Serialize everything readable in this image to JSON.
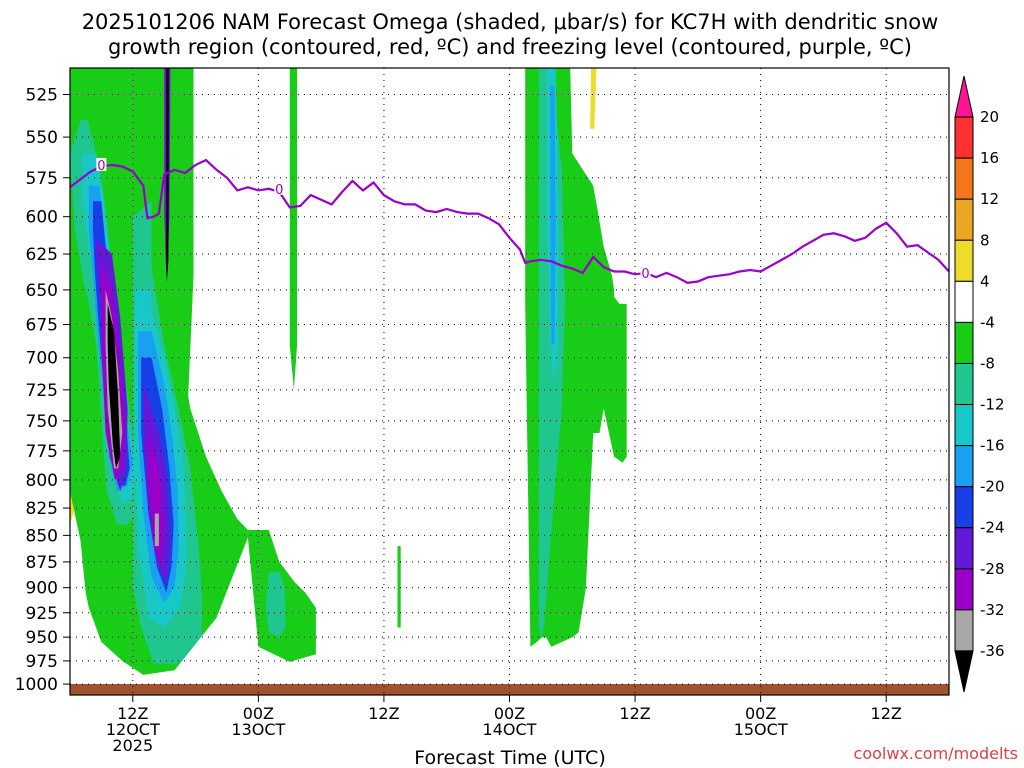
{
  "title_lines": [
    "2025101206 NAM Forecast Omega (shaded, μbar/s) for KC7H with dendritic snow",
    "growth region (contoured, red, ºC) and freezing level (contoured, purple, ºC)"
  ],
  "credit": "coolwx.com/modelts",
  "colors": {
    "freezing_line": "#9900cc",
    "ground": "#a0522d",
    "grid": "#000000"
  },
  "chart_data": {
    "type": "heatmap",
    "title": "2025101206 NAM Forecast Omega (shaded, μbar/s) for KC7H with dendritic snow growth region (contoured, red, ºC) and freezing level (contoured, purple, ºC)",
    "xlabel": "Forecast Time (UTC)",
    "ylabel": "",
    "x_range_hours": [
      0,
      84
    ],
    "y_range_hPa": [
      510,
      1012
    ],
    "y_scale": "log",
    "grid": "dotted",
    "pressure_ticks": [
      "525",
      "550",
      "575",
      "600",
      "625",
      "650",
      "675",
      "700",
      "725",
      "750",
      "775",
      "800",
      "825",
      "850",
      "875",
      "900",
      "925",
      "950",
      "975",
      "1000"
    ],
    "time_ticks": [
      {
        "hour": 6,
        "lines": [
          "12Z",
          "12OCT",
          "2025"
        ]
      },
      {
        "hour": 18,
        "lines": [
          "00Z",
          "13OCT"
        ]
      },
      {
        "hour": 30,
        "lines": [
          "12Z"
        ]
      },
      {
        "hour": 42,
        "lines": [
          "00Z",
          "14OCT"
        ]
      },
      {
        "hour": 54,
        "lines": [
          "12Z"
        ]
      },
      {
        "hour": 66,
        "lines": [
          "00Z",
          "15OCT"
        ]
      },
      {
        "hour": 78,
        "lines": [
          "12Z"
        ]
      }
    ],
    "colorbar": {
      "labels": [
        "20",
        "16",
        "12",
        "8",
        "4",
        "-4",
        "-8",
        "-12",
        "-16",
        "-20",
        "-24",
        "-28",
        "-32",
        "-36"
      ],
      "colors": [
        "#ff1493",
        "#ff3030",
        "#f4761b",
        "#e8a623",
        "#eedc2a",
        "#ffffff",
        "#18cc18",
        "#20c68f",
        "#18c8c8",
        "#1aa0f2",
        "#1840e6",
        "#6418d8",
        "#9a00c8",
        "#a8a8a8",
        "#000000"
      ]
    },
    "freezing_level": {
      "label": "0",
      "points": [
        [
          0,
          581
        ],
        [
          1,
          576
        ],
        [
          2,
          571
        ],
        [
          3,
          568
        ],
        [
          4,
          567
        ],
        [
          5,
          568
        ],
        [
          6,
          571
        ],
        [
          7,
          580
        ],
        [
          7.4,
          601
        ],
        [
          8,
          600
        ],
        [
          8.5,
          598
        ],
        [
          9,
          573
        ],
        [
          10,
          570
        ],
        [
          11,
          572
        ],
        [
          12,
          567
        ],
        [
          13,
          564
        ],
        [
          14,
          570
        ],
        [
          15,
          575
        ],
        [
          16,
          583
        ],
        [
          17,
          581
        ],
        [
          18,
          583
        ],
        [
          19,
          582
        ],
        [
          20,
          584
        ],
        [
          21,
          594
        ],
        [
          22,
          593
        ],
        [
          23,
          586
        ],
        [
          24,
          589
        ],
        [
          25,
          592
        ],
        [
          26,
          584
        ],
        [
          27,
          577
        ],
        [
          28,
          583
        ],
        [
          29,
          578
        ],
        [
          30,
          586
        ],
        [
          31,
          590
        ],
        [
          32,
          592
        ],
        [
          33,
          592
        ],
        [
          34,
          596
        ],
        [
          35,
          597
        ],
        [
          36,
          595
        ],
        [
          37,
          597
        ],
        [
          38,
          598
        ],
        [
          39,
          598
        ],
        [
          40,
          601
        ],
        [
          41,
          605
        ],
        [
          42,
          614
        ],
        [
          43,
          622
        ],
        [
          43.5,
          631
        ],
        [
          44,
          630
        ],
        [
          45,
          629
        ],
        [
          46,
          630
        ],
        [
          47,
          633
        ],
        [
          48,
          635
        ],
        [
          49,
          638
        ],
        [
          50,
          627
        ],
        [
          51,
          634
        ],
        [
          52,
          637
        ],
        [
          53,
          637
        ],
        [
          54,
          639
        ],
        [
          55,
          638
        ],
        [
          56,
          641
        ],
        [
          57,
          638
        ],
        [
          58,
          641
        ],
        [
          59,
          645
        ],
        [
          60,
          644
        ],
        [
          61,
          641
        ],
        [
          62,
          640
        ],
        [
          63,
          639
        ],
        [
          64,
          637
        ],
        [
          65,
          636
        ],
        [
          66,
          637
        ],
        [
          67,
          633
        ],
        [
          68,
          629
        ],
        [
          69,
          625
        ],
        [
          70,
          620
        ],
        [
          71,
          616
        ],
        [
          72,
          612
        ],
        [
          73,
          611
        ],
        [
          74,
          613
        ],
        [
          75,
          616
        ],
        [
          76,
          614
        ],
        [
          77,
          608
        ],
        [
          78,
          604
        ],
        [
          79,
          611
        ],
        [
          80,
          620
        ],
        [
          81,
          619
        ],
        [
          82,
          624
        ],
        [
          83,
          629
        ],
        [
          84,
          637
        ]
      ]
    },
    "omega_regions": [
      {
        "value": 6,
        "x": [
          0,
          0.6,
          0.6,
          0,
          0
        ],
        "p": [
          640,
          660,
          820,
          840,
          640
        ]
      },
      {
        "value": 6,
        "x": [
          2.5,
          3.4,
          3.4,
          2.5,
          2.5
        ],
        "p": [
          730,
          740,
          880,
          900,
          730
        ]
      },
      {
        "value": 6,
        "x": [
          8.4,
          9.0,
          9.2,
          8.6,
          8.4
        ],
        "p": [
          510,
          510,
          740,
          740,
          510
        ]
      },
      {
        "value": 6,
        "x": [
          49.8,
          50.3,
          50.1,
          49.7,
          49.8
        ],
        "p": [
          510,
          510,
          545,
          545,
          510
        ]
      },
      {
        "value": -6,
        "x": [
          0,
          11.8,
          11.8,
          11.3,
          11.5,
          13,
          14.5,
          16,
          17,
          17,
          14,
          10,
          7,
          5,
          3,
          1.8,
          1.5,
          1,
          0
        ],
        "p": [
          510,
          510,
          640,
          730,
          740,
          780,
          810,
          835,
          845,
          852,
          930,
          985,
          990,
          975,
          955,
          920,
          905,
          855,
          810
        ]
      },
      {
        "value": -6,
        "x": [
          17,
          19,
          20,
          21.5,
          22.5,
          23.5,
          23.5,
          21,
          18,
          17
        ],
        "p": [
          845,
          845,
          875,
          895,
          905,
          920,
          968,
          976,
          960,
          852
        ]
      },
      {
        "value": -6,
        "x": [
          21,
          21.7,
          21.7,
          21.4,
          21,
          21
        ],
        "p": [
          510,
          510,
          690,
          725,
          690,
          510
        ]
      },
      {
        "value": -6,
        "x": [
          31.3,
          31.6,
          31.6,
          31.3,
          31.3
        ],
        "p": [
          860,
          860,
          940,
          940,
          860
        ]
      },
      {
        "value": -6,
        "x": [
          43.5,
          47.8,
          48,
          49,
          50,
          50.4,
          51,
          51.8,
          52,
          52,
          52.5,
          53.2,
          53.2,
          52.8,
          52,
          51,
          50.6,
          50,
          49.3,
          48.6,
          48,
          46,
          45.5,
          45.1,
          44.6,
          44,
          43.5
        ],
        "p": [
          510,
          510,
          560,
          570,
          580,
          595,
          620,
          640,
          650,
          655,
          660,
          660,
          780,
          785,
          780,
          740,
          760,
          760,
          900,
          945,
          950,
          960,
          950,
          950,
          955,
          960,
          660
        ]
      },
      {
        "value": -10,
        "x": [
          0,
          1,
          1.7,
          2.5,
          3,
          3.5,
          4.2,
          5,
          6,
          6.8,
          6.2,
          5.5,
          4.5,
          3.5,
          3,
          2.5,
          1.8,
          1.2,
          0.5,
          0
        ],
        "p": [
          560,
          540,
          540,
          560,
          575,
          600,
          650,
          700,
          760,
          800,
          830,
          840,
          840,
          810,
          750,
          690,
          660,
          640,
          610,
          560
        ]
      },
      {
        "value": -10,
        "x": [
          6,
          7.8,
          7.8,
          9,
          10.5,
          11.5,
          12.3,
          12.6,
          12.6,
          10.5,
          8,
          6.8,
          6
        ],
        "p": [
          600,
          590,
          635,
          690,
          745,
          790,
          860,
          905,
          948,
          978,
          978,
          940,
          900
        ]
      },
      {
        "value": -10,
        "x": [
          19,
          20,
          20.5,
          20.6,
          20,
          19,
          18.7,
          19
        ],
        "p": [
          885,
          885,
          900,
          940,
          950,
          945,
          920,
          885
        ]
      },
      {
        "value": -10,
        "x": [
          44.8,
          46,
          46.5,
          47,
          47.2,
          47.3,
          47,
          46.5,
          45.8,
          45.3,
          45,
          44.8
        ],
        "p": [
          510,
          510,
          540,
          570,
          620,
          660,
          740,
          790,
          870,
          940,
          950,
          940
        ]
      },
      {
        "value": -14,
        "x": [
          1.2,
          2.5,
          3.2,
          3.8,
          4.6,
          5.3,
          6.3,
          6,
          5,
          4.2,
          3.5,
          3,
          2.5,
          1.8,
          1.2
        ],
        "p": [
          560,
          560,
          590,
          630,
          690,
          740,
          790,
          815,
          820,
          800,
          750,
          690,
          650,
          620,
          590
        ]
      },
      {
        "value": -14,
        "x": [
          6.2,
          7.8,
          7.8,
          9,
          10,
          10.8,
          11.1,
          11.1,
          10.5,
          9,
          7.5,
          6.5,
          6.2
        ],
        "p": [
          650,
          650,
          665,
          700,
          740,
          780,
          830,
          880,
          920,
          940,
          930,
          860,
          780
        ]
      },
      {
        "value": -14,
        "x": [
          45.6,
          46.4,
          46.6,
          46.7,
          46.6,
          46.2,
          45.9,
          45.6
        ],
        "p": [
          510,
          510,
          560,
          620,
          700,
          720,
          690,
          600
        ]
      },
      {
        "value": -18,
        "x": [
          1.8,
          2.8,
          3.3,
          4,
          4.6,
          5.3,
          6,
          5.5,
          4.5,
          3.7,
          3.2,
          2.6,
          2.2,
          1.8
        ],
        "p": [
          580,
          580,
          610,
          650,
          700,
          745,
          785,
          805,
          810,
          780,
          730,
          680,
          640,
          610
        ]
      },
      {
        "value": -18,
        "x": [
          6.5,
          7.8,
          9,
          9.8,
          10.3,
          10.4,
          10,
          9,
          7.8,
          7,
          6.5
        ],
        "p": [
          680,
          680,
          720,
          765,
          810,
          860,
          900,
          915,
          890,
          830,
          760
        ]
      },
      {
        "value": -18,
        "x": [
          45.9,
          46.3,
          46.4,
          46.3,
          46,
          45.9
        ],
        "p": [
          520,
          520,
          600,
          690,
          690,
          600
        ]
      },
      {
        "value": -22,
        "x": [
          2.2,
          3.0,
          3.4,
          4.0,
          4.6,
          5.3,
          5.7,
          5.3,
          4.6,
          3.8,
          3.2,
          2.7,
          2.4,
          2.2
        ],
        "p": [
          590,
          590,
          620,
          650,
          700,
          745,
          790,
          805,
          805,
          770,
          720,
          670,
          640,
          610
        ]
      },
      {
        "value": -22,
        "x": [
          6.8,
          7.8,
          8.8,
          9.5,
          9.9,
          9.7,
          9.2,
          8.3,
          7.5,
          6.8
        ],
        "p": [
          700,
          700,
          740,
          790,
          840,
          880,
          905,
          880,
          830,
          760
        ]
      },
      {
        "value": -26,
        "x": [
          2.5,
          4.0,
          4.8,
          5.5,
          5.4,
          4.8,
          3.8,
          3.3,
          2.9,
          2.5
        ],
        "p": [
          615,
          625,
          670,
          740,
          790,
          810,
          780,
          720,
          660,
          630
        ]
      },
      {
        "value": -26,
        "x": [
          7.0,
          8.5,
          9.3,
          9.6,
          9.2,
          8.4,
          7.5,
          7.0
        ],
        "p": [
          720,
          760,
          800,
          860,
          895,
          880,
          830,
          770
        ]
      },
      {
        "value": -26,
        "x": [
          9.0,
          9.6,
          9.5,
          9.3,
          9.0
        ],
        "p": [
          510,
          510,
          600,
          640,
          600
        ]
      },
      {
        "value": -30,
        "x": [
          3.0,
          4.0,
          4.6,
          5.3,
          5.0,
          4.3,
          3.4,
          3.0
        ],
        "p": [
          630,
          650,
          690,
          750,
          790,
          800,
          760,
          690
        ]
      },
      {
        "value": -30,
        "x": [
          7.5,
          8.5,
          9.0,
          8.7,
          8.0,
          7.5
        ],
        "p": [
          760,
          790,
          840,
          880,
          860,
          800
        ]
      },
      {
        "value": -30,
        "x": [
          9.1,
          9.5,
          9.4,
          9.2,
          9.1
        ],
        "p": [
          510,
          510,
          620,
          640,
          620
        ]
      },
      {
        "value": -34,
        "x": [
          3.4,
          4.0,
          4.6,
          5.0,
          4.6,
          4.2,
          3.6,
          3.4
        ],
        "p": [
          650,
          670,
          710,
          760,
          790,
          790,
          740,
          690
        ]
      },
      {
        "value": -34,
        "x": [
          8.1,
          8.5,
          8.5,
          8.1
        ],
        "p": [
          830,
          830,
          860,
          860
        ]
      },
      {
        "value": -38,
        "x": [
          3.6,
          4.2,
          4.6,
          4.8,
          4.4,
          4.1,
          3.7,
          3.6
        ],
        "p": [
          660,
          680,
          730,
          780,
          790,
          770,
          720,
          690
        ]
      },
      {
        "value": -38,
        "x": [
          9.2,
          9.45,
          9.4,
          9.25,
          9.2
        ],
        "p": [
          510,
          510,
          630,
          645,
          630
        ]
      }
    ]
  }
}
